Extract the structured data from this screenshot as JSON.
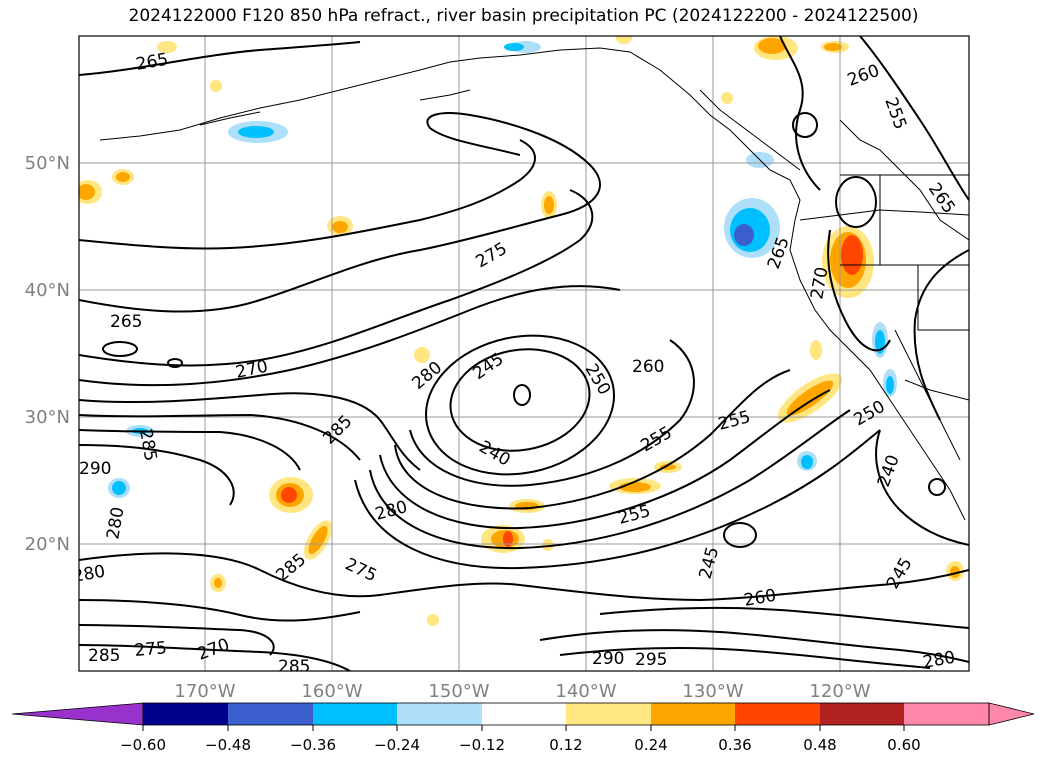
{
  "title": "2024122000 F120 850 hPa refract., river basin precipitation PC (2024122200 - 2024122500)",
  "latitude_labels": [
    "50°N",
    "40°N",
    "30°N",
    "20°N"
  ],
  "longitude_labels": [
    "170°W",
    "160°W",
    "150°W",
    "140°W",
    "130°W",
    "120°W"
  ],
  "contour_labels": [
    "265",
    "260",
    "255",
    "265",
    "265",
    "275",
    "270",
    "265",
    "270",
    "280",
    "245",
    "250",
    "260",
    "285",
    "255",
    "255",
    "240",
    "250",
    "240",
    "285",
    "290",
    "280",
    "280",
    "255",
    "285",
    "275",
    "245",
    "260",
    "245",
    "280",
    "285",
    "275",
    "270",
    "285",
    "290",
    "295",
    "280"
  ],
  "colorbar": {
    "tick_labels": [
      "−0.60",
      "−0.48",
      "−0.36",
      "−0.24",
      "−0.12",
      "0.12",
      "0.24",
      "0.36",
      "0.48",
      "0.60"
    ],
    "colors": [
      "#9932CC",
      "#00008B",
      "#3A5FCD",
      "#00BFFF",
      "#ADDFF8",
      "#FFFFFF",
      "#FFE680",
      "#FFA500",
      "#FF4500",
      "#B22222",
      "#FF88AA",
      "#FF88AA"
    ],
    "low_extend_color": "#9932CC",
    "high_extend_color": "#FF88AA"
  },
  "contour_color": "#000000",
  "grid_color": "#999999"
}
